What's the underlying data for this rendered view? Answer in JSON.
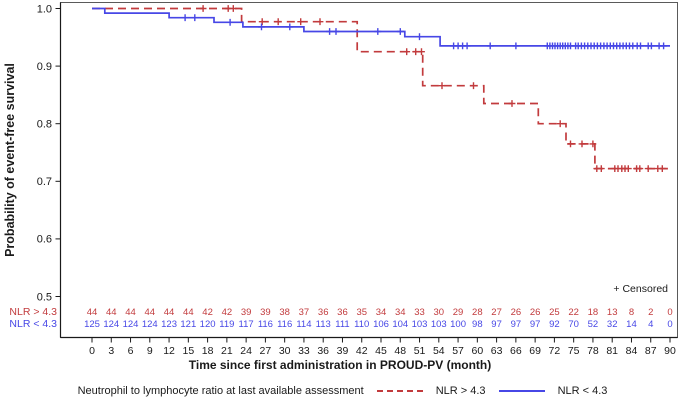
{
  "figure": {
    "censored_note": "+ Censored",
    "legend": {
      "title": "Neutrophil to lymphocyte ratio at last available assessment",
      "items": [
        {
          "label": "NLR > 4.3",
          "style": "dashed",
          "color": "#c23b3d"
        },
        {
          "label": "NLR < 4.3",
          "style": "solid",
          "color": "#4747e6"
        }
      ]
    },
    "risk_table_row_labels": [
      "NLR > 4.3",
      "NLR < 4.3"
    ]
  },
  "chart_data": {
    "type": "line",
    "subtype": "kaplan-meier-step",
    "title": "",
    "xlabel": "Time since first administration in PROUD-PV (month)",
    "ylabel": "Probability of event-free survival",
    "xlim": [
      0,
      90
    ],
    "ylim": [
      0.5,
      1.0
    ],
    "grid": false,
    "legend_position": "bottom",
    "x_ticks": [
      0,
      3,
      6,
      9,
      12,
      15,
      18,
      21,
      24,
      27,
      30,
      33,
      36,
      39,
      42,
      45,
      48,
      51,
      54,
      57,
      60,
      63,
      66,
      69,
      72,
      75,
      78,
      81,
      84,
      87,
      90
    ],
    "y_ticks": [
      1.0,
      0.9,
      0.8,
      0.7,
      0.6,
      0.5
    ],
    "series": [
      {
        "id": "nlr-gt-4-3",
        "name": "NLR > 4.3",
        "color": "#c23b3d",
        "dash": true,
        "steps": [
          [
            0,
            1.0
          ],
          [
            23.3,
            0.977
          ],
          [
            41.3,
            0.925
          ],
          [
            51.5,
            0.866
          ],
          [
            61,
            0.835
          ],
          [
            69.5,
            0.8
          ],
          [
            73.8,
            0.765
          ],
          [
            78.3,
            0.722
          ]
        ],
        "censors": [
          17.3,
          21.2,
          22.0,
          26.5,
          29.0,
          32.5,
          35.5,
          49.0,
          50.4,
          51.3,
          54.5,
          59.4,
          65.4,
          72.9,
          74.5,
          76.3,
          78.0,
          78.6,
          79.3,
          81.4,
          81.9,
          82.5,
          83.0,
          83.5,
          84.8,
          85.3,
          86.6,
          88.1,
          88.8
        ],
        "at_risk": [
          44,
          44,
          44,
          44,
          44,
          44,
          42,
          42,
          39,
          39,
          38,
          37,
          36,
          36,
          35,
          34,
          34,
          33,
          30,
          29,
          28,
          27,
          26,
          26,
          25,
          22,
          18,
          13,
          8,
          2,
          0
        ]
      },
      {
        "id": "nlr-lt-4-3",
        "name": "NLR < 4.3",
        "color": "#4747e6",
        "dash": false,
        "steps": [
          [
            0,
            1.0
          ],
          [
            2,
            0.992
          ],
          [
            12,
            0.984
          ],
          [
            19,
            0.976
          ],
          [
            23.5,
            0.968
          ],
          [
            33,
            0.96
          ],
          [
            48.7,
            0.951
          ],
          [
            54.2,
            0.935
          ]
        ],
        "censors": [
          14.5,
          16.0,
          21.5,
          26.4,
          30.8,
          37.0,
          38.0,
          44.5,
          48.0,
          51.0,
          56.3,
          57.0,
          57.7,
          58.4,
          62.0,
          66.0,
          70.9,
          71.3,
          71.7,
          72.1,
          72.5,
          72.9,
          73.3,
          73.7,
          74.1,
          74.5,
          75.3,
          75.7,
          76.2,
          76.7,
          77.2,
          77.7,
          78.2,
          78.7,
          79.2,
          79.7,
          80.2,
          80.7,
          81.2,
          81.7,
          82.2,
          82.7,
          83.2,
          83.7,
          84.2,
          84.9,
          85.4,
          86.6,
          87.1,
          88.3,
          89.0
        ],
        "at_risk": [
          125,
          124,
          124,
          124,
          123,
          121,
          120,
          119,
          117,
          116,
          116,
          114,
          113,
          111,
          110,
          106,
          104,
          103,
          103,
          100,
          98,
          97,
          97,
          97,
          92,
          70,
          52,
          32,
          14,
          4,
          0
        ]
      }
    ]
  }
}
